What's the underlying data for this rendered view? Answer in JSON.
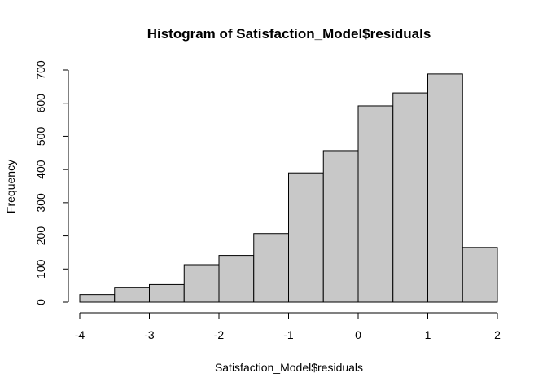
{
  "chart_data": {
    "type": "bar",
    "title": "Histogram of Satisfaction_Model$residuals",
    "xlabel": "Satisfaction_Model$residuals",
    "ylabel": "Frequency",
    "bins": [
      {
        "start": -4.0,
        "end": -3.5,
        "count": 23
      },
      {
        "start": -3.5,
        "end": -3.0,
        "count": 45
      },
      {
        "start": -3.0,
        "end": -2.5,
        "count": 53
      },
      {
        "start": -2.5,
        "end": -2.0,
        "count": 113
      },
      {
        "start": -2.0,
        "end": -1.5,
        "count": 141
      },
      {
        "start": -1.5,
        "end": -1.0,
        "count": 207
      },
      {
        "start": -1.0,
        "end": -0.5,
        "count": 390
      },
      {
        "start": -0.5,
        "end": 0.0,
        "count": 457
      },
      {
        "start": 0.0,
        "end": 0.5,
        "count": 592
      },
      {
        "start": 0.5,
        "end": 1.0,
        "count": 631
      },
      {
        "start": 1.0,
        "end": 1.5,
        "count": 688
      },
      {
        "start": 1.5,
        "end": 2.0,
        "count": 165
      }
    ],
    "xlim": [
      -4,
      2
    ],
    "ylim": [
      0,
      700
    ],
    "xticks": [
      -4,
      -3,
      -2,
      -1,
      0,
      1,
      2
    ],
    "yticks": [
      0,
      100,
      200,
      300,
      400,
      500,
      600,
      700
    ],
    "grid": false,
    "bar_fill": "#c8c8c8",
    "bar_stroke": "#000000"
  }
}
